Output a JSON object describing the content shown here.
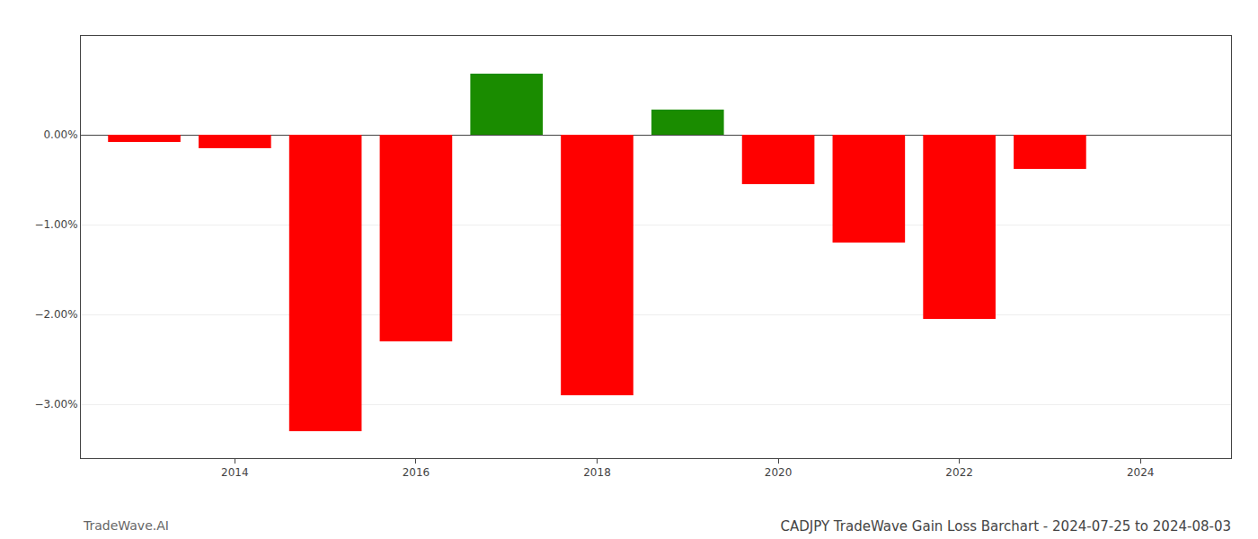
{
  "chart_data": {
    "type": "bar",
    "title": "CADJPY TradeWave Gain Loss Barchart - 2024-07-25 to 2024-08-03",
    "annotations": [
      "TradeWave.AI"
    ],
    "x": [
      2013,
      2014,
      2015,
      2016,
      2017,
      2018,
      2019,
      2020,
      2021,
      2022,
      2023
    ],
    "values": [
      -0.0008,
      -0.0015,
      -0.033,
      -0.023,
      0.0068,
      -0.029,
      0.0028,
      -0.0055,
      -0.012,
      -0.0205,
      -0.0038
    ],
    "colors": [
      "#ff0000",
      "#ff0000",
      "#ff0000",
      "#ff0000",
      "#1a8c00",
      "#ff0000",
      "#1a8c00",
      "#ff0000",
      "#ff0000",
      "#ff0000",
      "#ff0000"
    ],
    "xlim": [
      2012.3,
      2025.0
    ],
    "xticks": [
      2014,
      2016,
      2018,
      2020,
      2022,
      2024
    ],
    "ylim": [
      -0.036,
      0.011
    ],
    "yticks": [
      {
        "value": -0.03,
        "label": "−3.00%"
      },
      {
        "value": -0.02,
        "label": "−2.00%"
      },
      {
        "value": -0.01,
        "label": "−1.00%"
      },
      {
        "value": 0.0,
        "label": "0.00%"
      }
    ],
    "grid": "y"
  }
}
